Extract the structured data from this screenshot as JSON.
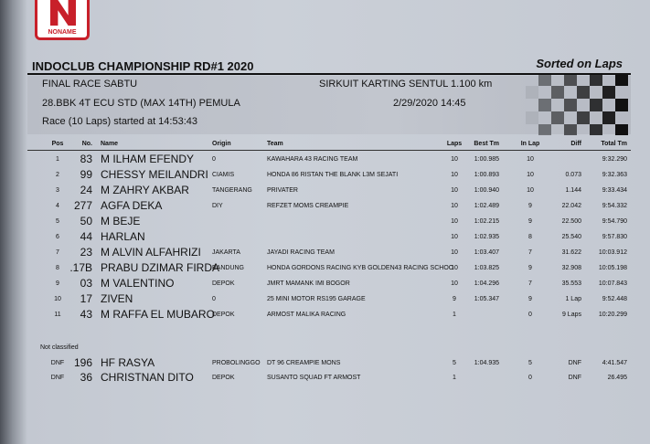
{
  "header": {
    "logo": "NONAME",
    "title": "INDOCLUB CHAMPIONSHIP RD#1 2020",
    "sort_note": "Sorted on Laps"
  },
  "info": {
    "session": "FINAL RACE SABTU",
    "circuit": "SIRKUIT KARTING SENTUL 1.100 km",
    "class": "28.BBK 4T ECU STD (MAX 14TH) PEMULA",
    "datetime": "2/29/2020 14:45",
    "race_start": "Race (10 Laps) started at 14:53:43"
  },
  "table": {
    "columns": [
      "Pos",
      "No.",
      "Name",
      "Origin",
      "Team",
      "Laps",
      "Best Tm",
      "In Lap",
      "Diff",
      "Total Tm"
    ],
    "rows": [
      [
        "1",
        "83",
        "M ILHAM EFENDY",
        "0",
        "KAWAHARA 43 RACING TEAM",
        "10",
        "1:00.985",
        "10",
        null,
        "9:32.290"
      ],
      [
        "2",
        "99",
        "CHESSY MEILANDRI",
        "CIAMIS",
        "HONDA 86 RISTAN THE BLANK L3M SEJATI",
        "10",
        "1:00.893",
        "10",
        "0.073",
        "9:32.363"
      ],
      [
        "3",
        "24",
        "M ZAHRY AKBAR",
        "TANGERANG",
        "PRIVATER",
        "10",
        "1:00.940",
        "10",
        "1.144",
        "9:33.434"
      ],
      [
        "4",
        "277",
        "AGFA DEKA",
        "DIY",
        "REFZET MOMS CREAMPIE",
        "10",
        "1:02.489",
        "9",
        "22.042",
        "9:54.332"
      ],
      [
        "5",
        "50",
        "M BEJE",
        null,
        null,
        "10",
        "1:02.215",
        "9",
        "22.500",
        "9:54.790"
      ],
      [
        "6",
        "44",
        "HARLAN",
        null,
        null,
        "10",
        "1:02.935",
        "8",
        "25.540",
        "9:57.830"
      ],
      [
        "7",
        "23",
        "M ALVIN ALFAHRIZI",
        "JAKARTA",
        "JAYADI RACING TEAM",
        "10",
        "1:03.407",
        "7",
        "31.622",
        "10:03.912"
      ],
      [
        "8",
        ".17B",
        "PRABU DZIMAR FIRDA",
        "BANDUNG",
        "HONDA GORDONS RACING KYB GOLDEN43 RACING SCHOO",
        "10",
        "1:03.825",
        "9",
        "32.908",
        "10:05.198"
      ],
      [
        "9",
        "03",
        "M VALENTINO",
        "DEPOK",
        "JMRT MAMANK IMI BOGOR",
        "10",
        "1:04.296",
        "7",
        "35.553",
        "10:07.843"
      ],
      [
        "10",
        "17",
        "ZIVEN",
        "0",
        "25 MINI MOTOR RS195 GARAGE",
        "9",
        "1:05.347",
        "9",
        "1 Lap",
        "9:52.448"
      ],
      [
        "11",
        "43",
        "M RAFFA EL MUBARO",
        "DEPOK",
        "ARMOST MALIKA RACING",
        "1",
        null,
        "0",
        "9 Laps",
        "10:20.299"
      ]
    ]
  },
  "not_classified": {
    "label": "Not classified",
    "rows": [
      [
        "DNF",
        "196",
        "HF RASYA",
        "PROBOLINGGO",
        "DT 96 CREAMPIE MONS",
        "5",
        "1:04.935",
        "5",
        "DNF",
        "4:41.547"
      ],
      [
        "DNF",
        "36",
        "CHRISTNAN DITO",
        "DEPOK",
        "SUSANTO SQUAD FT ARMOST",
        "1",
        null,
        "0",
        "DNF",
        "26.495"
      ]
    ]
  }
}
